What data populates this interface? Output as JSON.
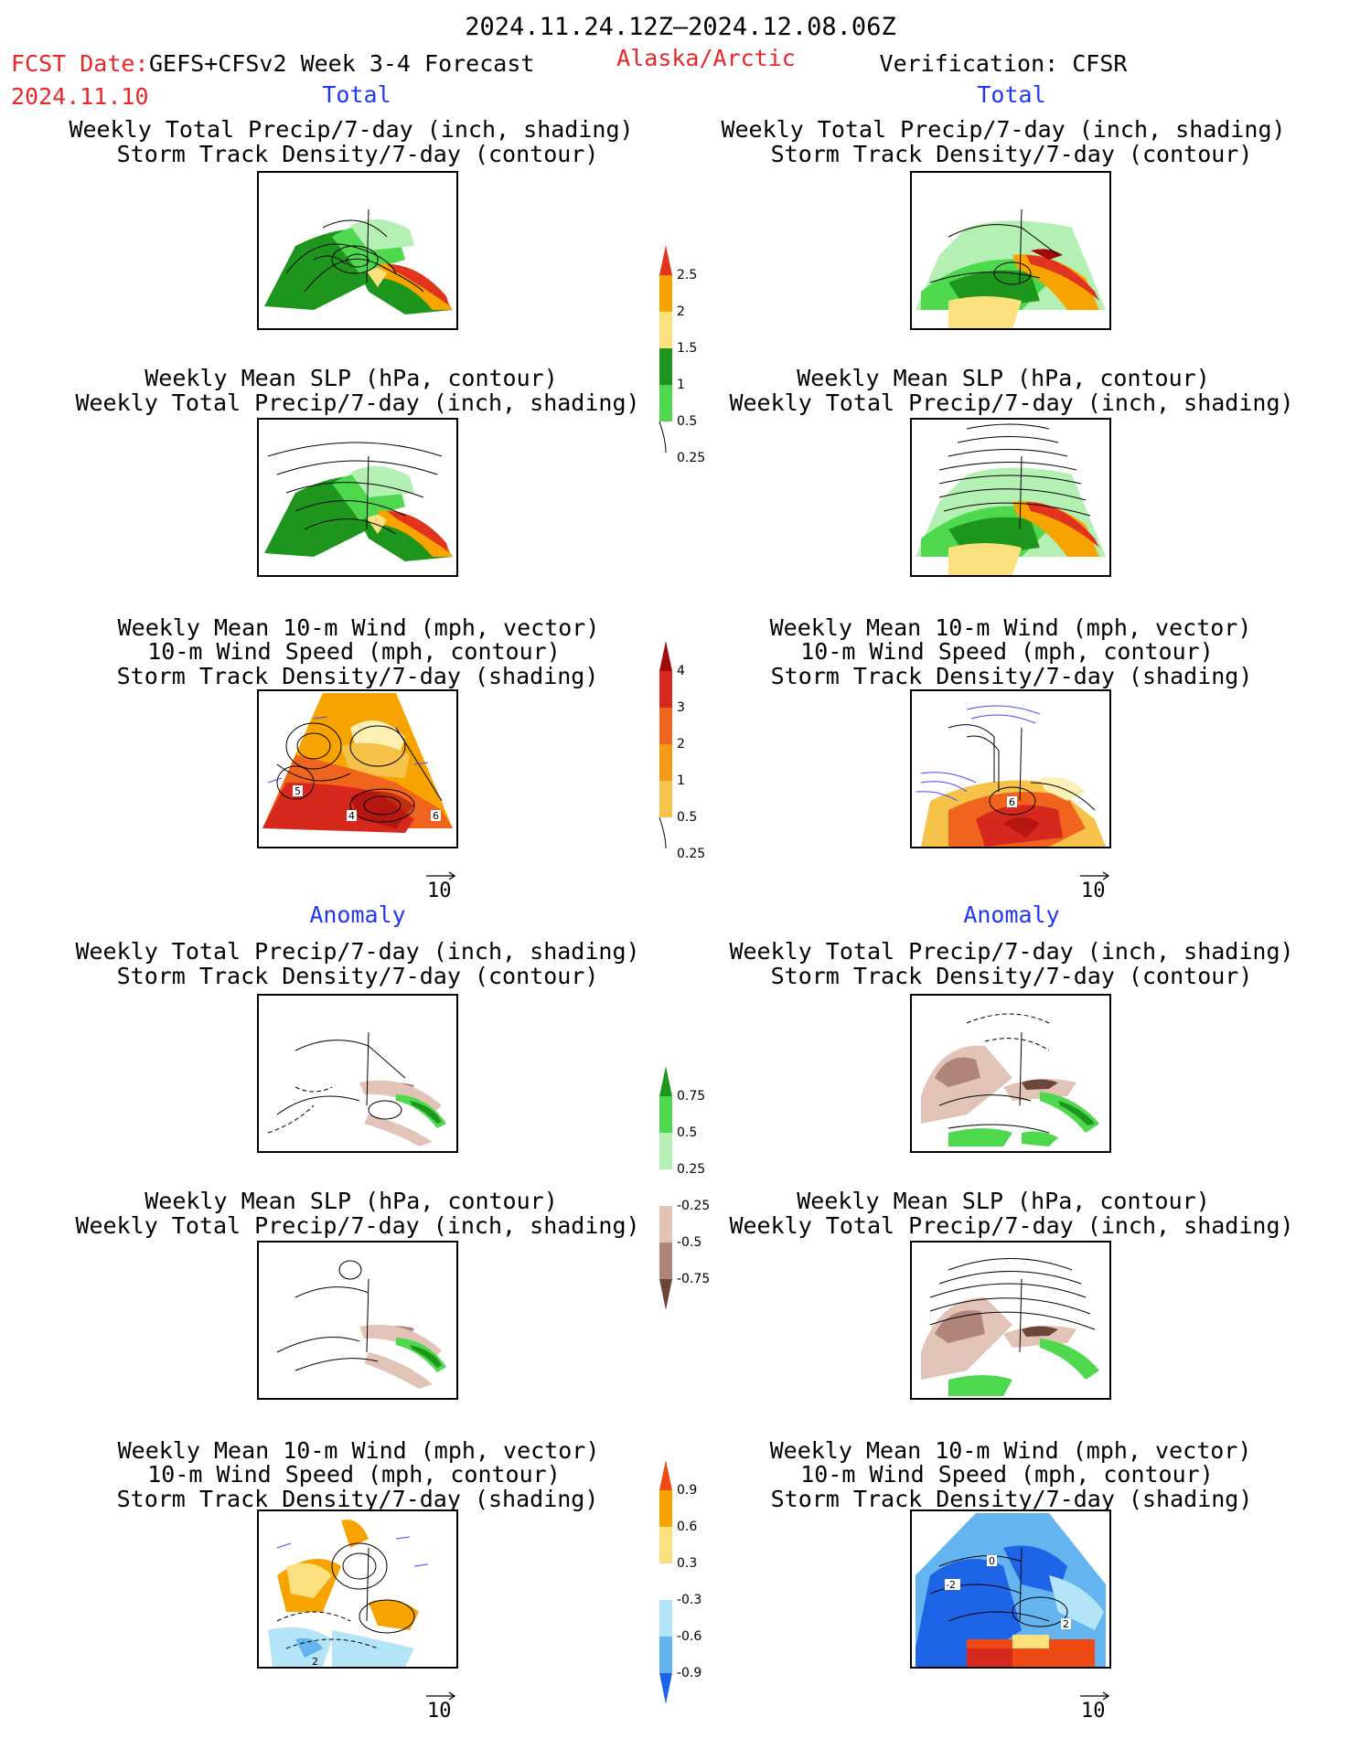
{
  "header": {
    "date_range": "2024.11.24.12Z—2024.12.08.06Z",
    "fcst_label": "FCST Date:",
    "fcst_model": "GEFS+CFSv2 Week 3-4 Forecast",
    "fcst_date": "2024.11.10",
    "region": "Alaska/Arctic",
    "verification": "Verification: CFSR"
  },
  "sections": {
    "total": "Total",
    "anomaly": "Anomaly"
  },
  "titles": {
    "precip_storm": [
      "Weekly Total Precip/7-day (inch, shading)",
      "Storm Track Density/7-day (contour)"
    ],
    "slp_precip": [
      "Weekly Mean SLP (hPa, contour)",
      "Weekly Total Precip/7-day (inch, shading)"
    ],
    "wind_storm": [
      "Weekly Mean 10-m Wind (mph, vector)",
      "10-m Wind Speed (mph, contour)",
      "Storm Track Density/7-day (shading)"
    ]
  },
  "vector_scale": "10",
  "contour_labels": {
    "fcst_wind_total": [
      "5",
      "4",
      "6"
    ],
    "verif_wind_total": [
      "6"
    ],
    "fcst_wind_anom": [
      "2"
    ],
    "verif_wind_anom": [
      "0",
      "-2",
      "2"
    ]
  },
  "colorbars": {
    "precip_total": {
      "labels": [
        "2.5",
        "2",
        "1.5",
        "1",
        "0.5",
        "0.25"
      ],
      "colors": [
        "#e0341e",
        "#f8a400",
        "#fce07e",
        "#1e961e",
        "#4ed84e",
        "#b4f0b4"
      ]
    },
    "storm_total": {
      "labels": [
        "4",
        "3",
        "2",
        "1",
        "0.5",
        "0.25"
      ],
      "colors": [
        "#a00a0a",
        "#d7281e",
        "#f0641e",
        "#f59a14",
        "#f7c24a",
        "#fdf0b4"
      ]
    },
    "precip_anom": {
      "labels": [
        "0.75",
        "0.5",
        "0.25",
        "-0.25",
        "-0.5",
        "-0.75"
      ],
      "colors": [
        "#1e961e",
        "#4ed84e",
        "#b4f0b4",
        "#ffffff",
        "#e2c3b8",
        "#b08478",
        "#6c4638"
      ]
    },
    "storm_anom": {
      "labels": [
        "0.9",
        "0.6",
        "0.3",
        "-0.3",
        "-0.6",
        "-0.9"
      ],
      "colors": [
        "#f04a14",
        "#f8a400",
        "#fce07e",
        "#ffffff",
        "#b4e4f8",
        "#64b4f0",
        "#1e64e6"
      ]
    }
  }
}
